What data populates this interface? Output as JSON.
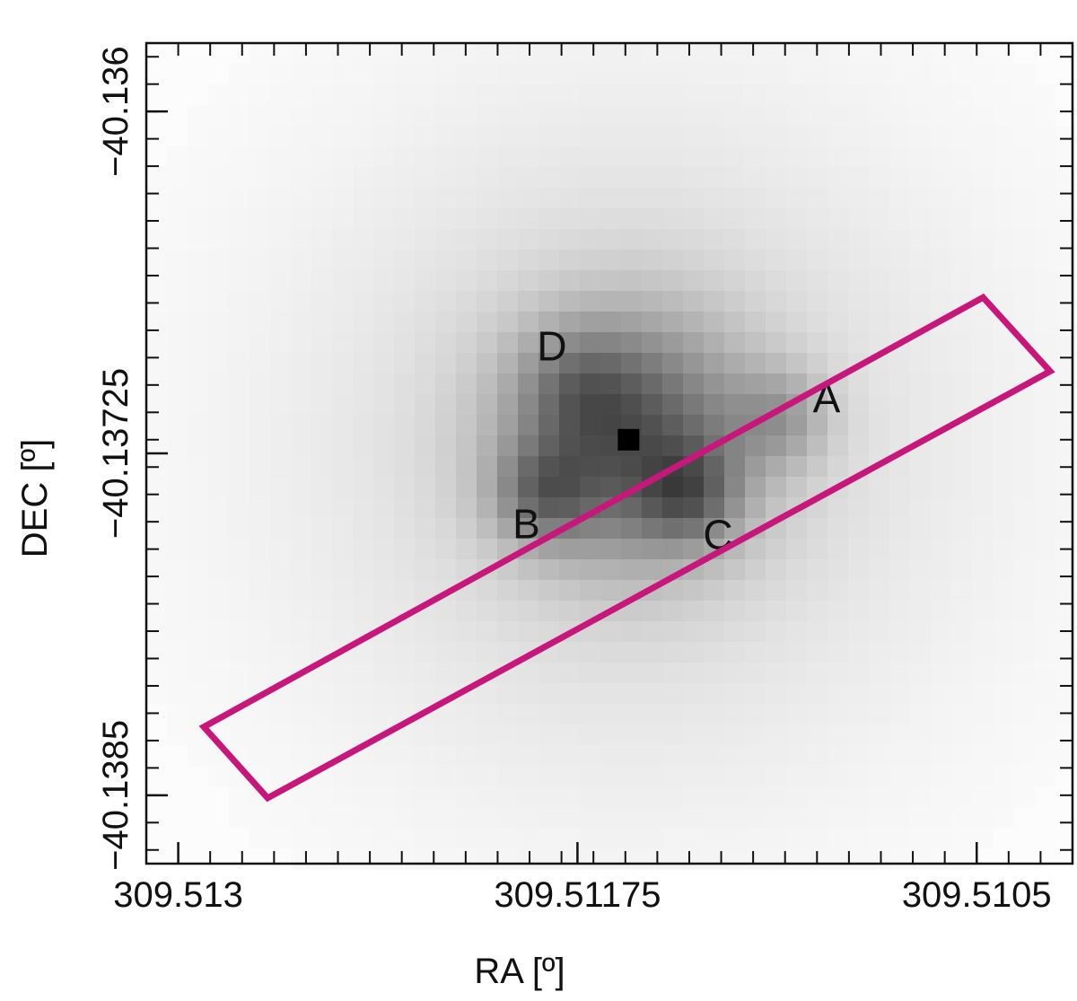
{
  "chart_data": {
    "type": "heatmap",
    "title": "",
    "xlabel": "RA [º]",
    "ylabel": "DEC [º]",
    "xlim": [
      309.5131,
      309.5102
    ],
    "ylim": [
      -40.13875,
      -40.13575
    ],
    "x_ticks": [
      309.513,
      309.51175,
      309.5105
    ],
    "x_tick_labels": [
      "309.513",
      "309.51175",
      "309.5105"
    ],
    "y_ticks": [
      -40.136,
      -40.13725,
      -40.1385
    ],
    "y_tick_labels": [
      "−40.136",
      "−40.13725",
      "−40.1385"
    ],
    "x_minor_step": 0.0001,
    "y_minor_step": 0.0001,
    "colormap": "grayscale (white = low, black = high)",
    "image_brightness": {
      "grid_x": [
        309.5117,
        309.5116,
        309.5115,
        309.5114,
        309.5113,
        309.5112,
        309.5111,
        309.511
      ],
      "note_peaks": "brightest pixel near RA 309.51159, DEC -40.1372"
    },
    "components": [
      {
        "label": "A",
        "ra": 309.51097,
        "dec": -40.13706
      },
      {
        "label": "B",
        "ra": 309.51191,
        "dec": -40.13752
      },
      {
        "label": "C",
        "ra": 309.51131,
        "dec": -40.13756
      },
      {
        "label": "D",
        "ra": 309.51183,
        "dec": -40.13687
      }
    ],
    "slit": {
      "color": "#c8177b",
      "corners": [
        {
          "ra": 309.51048,
          "dec": -40.13668
        },
        {
          "ra": 309.51027,
          "dec": -40.13695
        },
        {
          "ra": 309.51272,
          "dec": -40.13851
        },
        {
          "ra": 309.51292,
          "dec": -40.13825
        }
      ]
    },
    "grid": false,
    "legend": "none"
  }
}
